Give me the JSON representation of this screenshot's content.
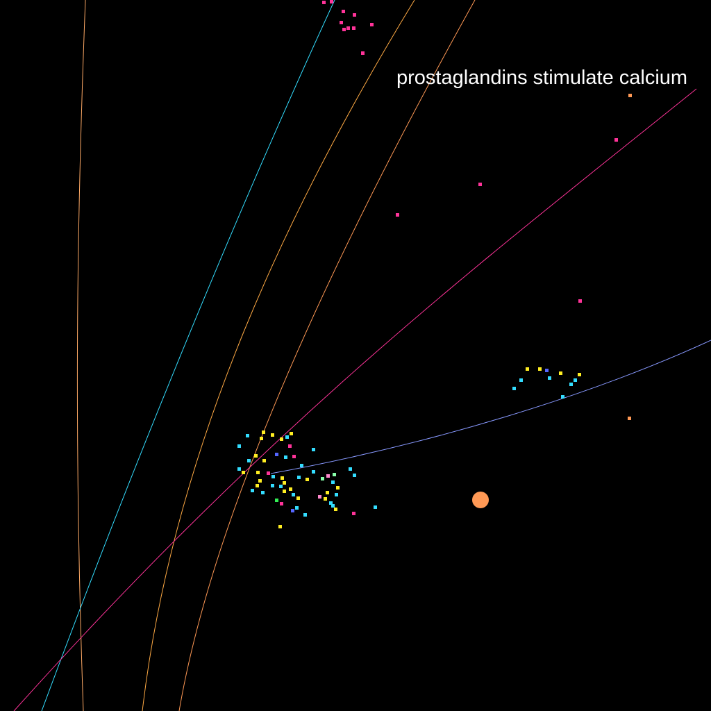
{
  "canvas": {
    "background": "#000000"
  },
  "caption": {
    "text": "prostaglandins stimulate calcium"
  },
  "colors": {
    "orange": "#ff9955",
    "cyan": "#33ddff",
    "yellow": "#ffee22",
    "magenta": "#ff3399",
    "blue": "#5566ff",
    "lavender": "#8899ff",
    "green": "#33ee55",
    "pink": "#ff88cc",
    "light_orange": "#ffaa55",
    "mint": "#88ffaa"
  }
}
